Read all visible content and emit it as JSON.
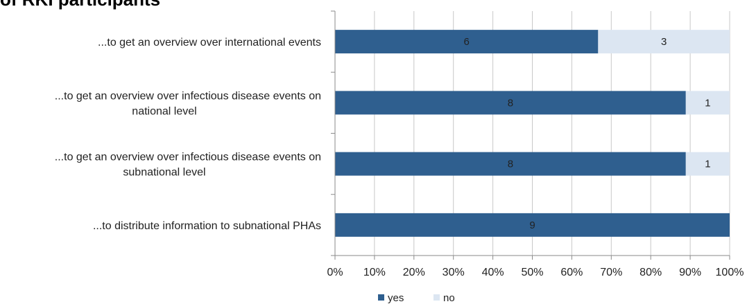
{
  "chart_data": {
    "type": "bar",
    "orientation": "horizontal",
    "stacked": "percent",
    "title": "of RKI participants",
    "categories": [
      [
        "...to get an overview over international events"
      ],
      [
        "...to get an overview over infectious disease events on",
        "national level"
      ],
      [
        "...to get an overview over infectious disease events on",
        "subnational level"
      ],
      [
        "...to distribute information to subnational PHAs"
      ]
    ],
    "series": [
      {
        "name": "yes",
        "values": [
          6,
          8,
          8,
          9
        ],
        "color": "#2f5f8f"
      },
      {
        "name": "no",
        "values": [
          3,
          1,
          1,
          0
        ],
        "color": "#dce6f2"
      }
    ],
    "xlim": [
      0,
      100
    ],
    "xticks": [
      "0%",
      "10%",
      "20%",
      "30%",
      "40%",
      "50%",
      "60%",
      "70%",
      "80%",
      "90%",
      "100%"
    ],
    "grid": "vertical",
    "legend_position": "bottom"
  }
}
